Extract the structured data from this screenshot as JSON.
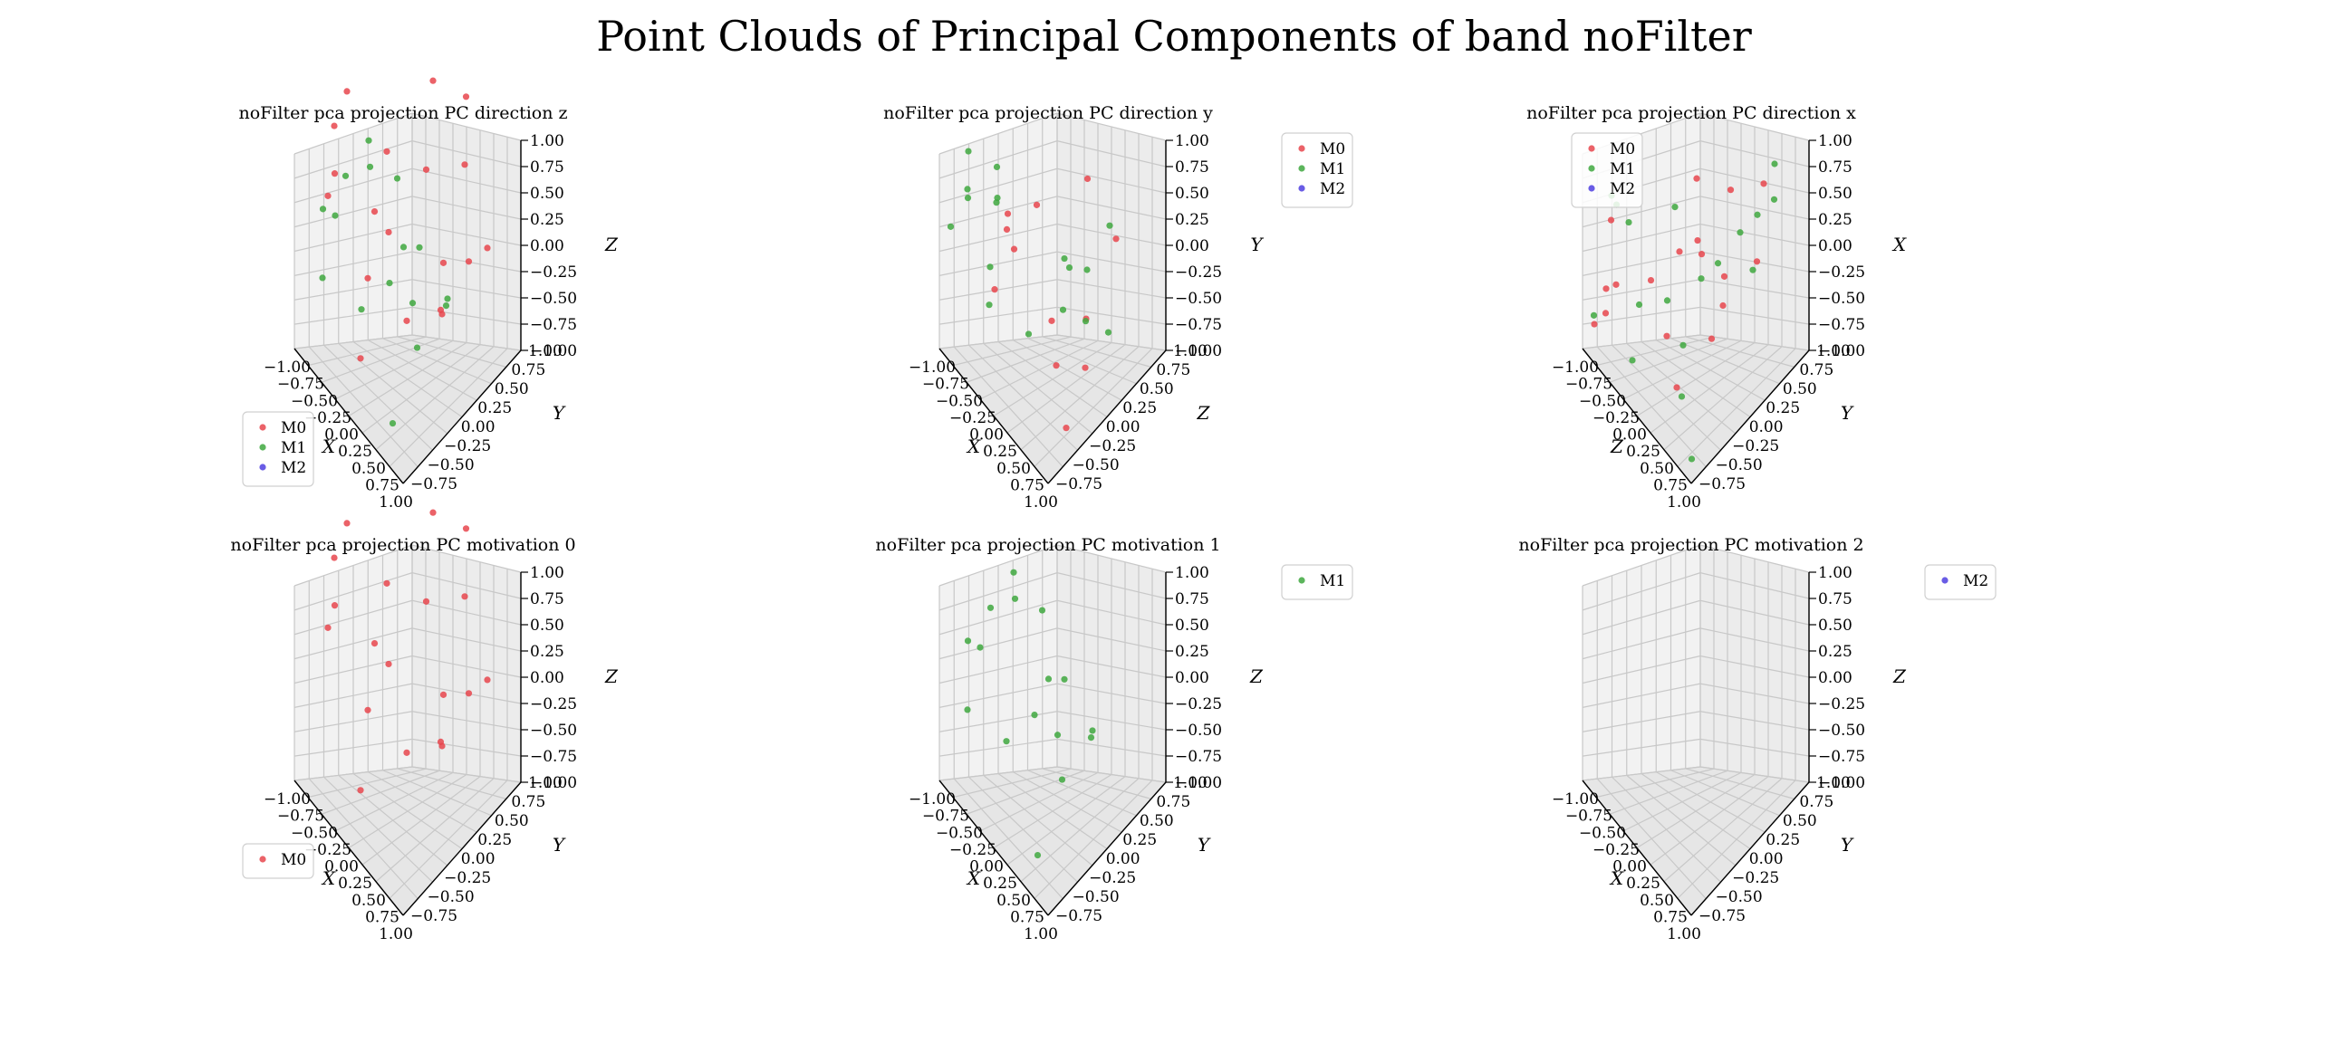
{
  "figure": {
    "suptitle": "Point Clouds of Principal Components of band noFilter"
  },
  "colors": {
    "M0": "#e8474d",
    "M1": "#3fa83f",
    "M2": "#4f3fe0"
  },
  "chart_data": [
    {
      "type": "scatter",
      "title": "noFilter pca projection PC direction z",
      "xlabel": "X",
      "ylabel": "Y",
      "zlabel": "Z",
      "xlim": [
        -1,
        1
      ],
      "ylim": [
        -1,
        1
      ],
      "zlim": [
        -1,
        1
      ],
      "x_ticks": [
        "−1.00",
        "−0.75",
        "−0.50",
        "−0.25",
        "0.00",
        "0.25",
        "0.50",
        "0.75",
        "1.00"
      ],
      "y_ticks": [
        "−0.75",
        "−0.50",
        "−0.25",
        "0.00",
        "0.25",
        "0.50",
        "0.75",
        "1.00"
      ],
      "z_ticks": [
        "−1.00",
        "−0.75",
        "−0.50",
        "−0.25",
        "0.00",
        "0.25",
        "0.50",
        "0.75",
        "1.00"
      ],
      "legend": {
        "entries": [
          "M0",
          "M1",
          "M2"
        ],
        "placement": "lower-left"
      },
      "series": [
        {
          "name": "M0",
          "points": [
            [
              -0.9,
              -0.2,
              0.9
            ],
            [
              -0.7,
              -0.6,
              0.95
            ],
            [
              -0.6,
              0.2,
              0.3
            ],
            [
              -0.8,
              -0.5,
              0.4
            ],
            [
              -0.5,
              -0.1,
              0.0
            ],
            [
              0.1,
              0.9,
              0.8
            ],
            [
              0.4,
              0.6,
              0.55
            ],
            [
              -0.2,
              0.5,
              0.2
            ],
            [
              0.0,
              -0.8,
              -0.6
            ],
            [
              -0.3,
              -0.4,
              -0.3
            ],
            [
              0.2,
              -0.2,
              -0.5
            ],
            [
              0.5,
              0.1,
              -0.4
            ],
            [
              -0.1,
              0.7,
              -0.7
            ],
            [
              0.6,
              0.8,
              -0.2
            ],
            [
              0.3,
              -0.6,
              0.6
            ],
            [
              -0.4,
              0.8,
              0.7
            ],
            [
              0.8,
              0.3,
              0.1
            ],
            [
              -0.6,
              -0.8,
              0.5
            ],
            [
              0.2,
              0.4,
              -0.8
            ]
          ]
        },
        {
          "name": "M1",
          "points": [
            [
              -0.8,
              -0.7,
              0.2
            ],
            [
              -0.9,
              -0.4,
              -0.1
            ],
            [
              -0.6,
              -0.5,
              0.5
            ],
            [
              -0.7,
              -0.8,
              -0.3
            ],
            [
              -0.3,
              0.1,
              0.3
            ],
            [
              0.0,
              0.2,
              -0.2
            ],
            [
              0.2,
              -0.1,
              -0.4
            ],
            [
              0.5,
              -0.3,
              -0.5
            ],
            [
              0.3,
              0.4,
              -0.6
            ],
            [
              -0.2,
              -0.6,
              -0.4
            ],
            [
              0.7,
              -0.9,
              -0.7
            ],
            [
              -0.5,
              -0.2,
              0.7
            ],
            [
              0.1,
              -0.4,
              -0.1
            ],
            [
              -0.4,
              0.3,
              -0.5
            ],
            [
              0.6,
              0.1,
              -0.3
            ],
            [
              -0.8,
              0.1,
              0.1
            ]
          ]
        },
        {
          "name": "M2",
          "points": []
        }
      ]
    },
    {
      "type": "scatter",
      "title": "noFilter pca projection PC direction y",
      "xlabel": "X",
      "ylabel": "Z",
      "zlabel": "Y",
      "xlim": [
        -1,
        1
      ],
      "ylim": [
        -1,
        1
      ],
      "zlim": [
        -1,
        1
      ],
      "x_ticks": [
        "−1.00",
        "−0.75",
        "−0.50",
        "−0.25",
        "0.00",
        "0.25",
        "0.50",
        "0.75",
        "1.00"
      ],
      "y_ticks": [
        "−0.75",
        "−0.50",
        "−0.25",
        "0.00",
        "0.25",
        "0.50",
        "0.75",
        "1.00"
      ],
      "z_ticks": [
        "−1.00",
        "−0.75",
        "−0.50",
        "−0.25",
        "0.00",
        "0.25",
        "0.50",
        "0.75",
        "1.00"
      ],
      "legend": {
        "entries": [
          "M0",
          "M1",
          "M2"
        ],
        "placement": "upper-right"
      },
      "series": [
        {
          "name": "M0",
          "points": [
            [
              -0.5,
              -0.3,
              0.1
            ],
            [
              -0.3,
              -0.5,
              0.2
            ],
            [
              -0.6,
              -0.1,
              -0.4
            ],
            [
              0.1,
              0.5,
              0.3
            ],
            [
              0.2,
              -0.2,
              -0.5
            ],
            [
              0.5,
              -0.4,
              -0.6
            ],
            [
              0.4,
              0.2,
              -0.6
            ],
            [
              -0.4,
              0.1,
              0.0
            ],
            [
              0.6,
              0.0,
              -0.8
            ],
            [
              0.9,
              -0.6,
              -0.8
            ],
            [
              0.3,
              0.8,
              -0.3
            ],
            [
              -0.2,
              -0.8,
              -0.1
            ]
          ]
        },
        {
          "name": "M1",
          "points": [
            [
              -0.9,
              -0.6,
              0.6
            ],
            [
              -0.8,
              -0.7,
              0.3
            ],
            [
              -0.7,
              -0.3,
              0.4
            ],
            [
              -0.9,
              -0.9,
              0.1
            ],
            [
              -0.6,
              -0.4,
              0.2
            ],
            [
              -0.8,
              -0.2,
              0.0
            ],
            [
              -0.5,
              -0.6,
              -0.2
            ],
            [
              0.0,
              0.2,
              -0.3
            ],
            [
              0.2,
              0.1,
              -0.2
            ],
            [
              0.3,
              -0.1,
              -0.4
            ],
            [
              0.1,
              -0.5,
              -0.5
            ],
            [
              0.5,
              0.1,
              -0.5
            ],
            [
              0.4,
              0.6,
              0.0
            ],
            [
              0.7,
              0.3,
              -0.6
            ],
            [
              -0.3,
              -0.8,
              -0.3
            ],
            [
              0.2,
              0.4,
              -0.4
            ],
            [
              -0.7,
              -0.8,
              0.5
            ]
          ]
        },
        {
          "name": "M2",
          "points": []
        }
      ]
    },
    {
      "type": "scatter",
      "title": "noFilter pca projection PC direction x",
      "xlabel": "Z",
      "ylabel": "Y",
      "zlabel": "X",
      "xlim": [
        -1,
        1
      ],
      "ylim": [
        -1,
        1
      ],
      "zlim": [
        -1,
        1
      ],
      "x_ticks": [
        "−1.00",
        "−0.75",
        "−0.50",
        "−0.25",
        "0.00",
        "0.25",
        "0.50",
        "0.75",
        "1.00"
      ],
      "y_ticks": [
        "−0.75",
        "−0.50",
        "−0.25",
        "0.00",
        "0.25",
        "0.50",
        "0.75",
        "1.00"
      ],
      "z_ticks": [
        "−1.00",
        "−0.75",
        "−0.50",
        "−0.25",
        "0.00",
        "0.25",
        "0.50",
        "0.75",
        "1.00"
      ],
      "legend": {
        "entries": [
          "M0",
          "M1",
          "M2"
        ],
        "placement": "upper-left"
      },
      "series": [
        {
          "name": "M0",
          "points": [
            [
              -0.2,
              0.2,
              0.3
            ],
            [
              0.6,
              0.6,
              0.5
            ],
            [
              0.8,
              0.3,
              0.1
            ],
            [
              -0.5,
              -0.3,
              -0.5
            ],
            [
              -0.3,
              0.0,
              -0.3
            ],
            [
              0.0,
              0.1,
              -0.2
            ],
            [
              0.2,
              0.3,
              -0.4
            ],
            [
              0.4,
              -0.1,
              -0.6
            ],
            [
              -0.1,
              -0.4,
              -0.7
            ],
            [
              0.3,
              -0.6,
              -0.8
            ],
            [
              -0.6,
              -0.8,
              -0.3
            ],
            [
              0.1,
              0.5,
              0.2
            ],
            [
              -0.8,
              -0.7,
              0.1
            ],
            [
              0.5,
              0.0,
              -0.3
            ],
            [
              -0.4,
              0.4,
              -0.5
            ],
            [
              -1.0,
              -0.8,
              -0.9
            ],
            [
              -0.9,
              -0.7,
              -0.8
            ],
            [
              -1.0,
              -0.6,
              -0.7
            ]
          ]
        },
        {
          "name": "M1",
          "points": [
            [
              -0.9,
              -0.6,
              0.2
            ],
            [
              -0.8,
              -0.4,
              -0.1
            ],
            [
              -0.7,
              -0.7,
              0.3
            ],
            [
              0.8,
              0.6,
              0.8
            ],
            [
              0.9,
              0.5,
              0.6
            ],
            [
              0.7,
              0.4,
              0.4
            ],
            [
              0.6,
              0.2,
              0.3
            ],
            [
              0.3,
              0.1,
              -0.1
            ],
            [
              0.1,
              0.0,
              -0.3
            ],
            [
              -0.2,
              -0.3,
              -0.5
            ],
            [
              -0.5,
              -0.5,
              -0.6
            ],
            [
              -0.3,
              -0.8,
              -0.8
            ],
            [
              0.2,
              -0.4,
              -0.6
            ],
            [
              0.5,
              -0.7,
              -0.7
            ],
            [
              0.9,
              -0.9,
              -0.9
            ],
            [
              -0.6,
              0.2,
              -0.2
            ],
            [
              0.4,
              0.6,
              -0.4
            ],
            [
              -0.9,
              -0.9,
              -0.7
            ]
          ]
        },
        {
          "name": "M2",
          "points": []
        }
      ]
    },
    {
      "type": "scatter",
      "title": "noFilter pca projection PC motivation 0",
      "xlabel": "X",
      "ylabel": "Y",
      "zlabel": "Z",
      "xlim": [
        -1,
        1
      ],
      "ylim": [
        -1,
        1
      ],
      "zlim": [
        -1,
        1
      ],
      "x_ticks": [
        "−1.00",
        "−0.75",
        "−0.50",
        "−0.25",
        "0.00",
        "0.25",
        "0.50",
        "0.75",
        "1.00"
      ],
      "y_ticks": [
        "−0.75",
        "−0.50",
        "−0.25",
        "0.00",
        "0.25",
        "0.50",
        "0.75",
        "1.00"
      ],
      "z_ticks": [
        "−1.00",
        "−0.75",
        "−0.50",
        "−0.25",
        "0.00",
        "0.25",
        "0.50",
        "0.75",
        "1.00"
      ],
      "legend": {
        "entries": [
          "M0"
        ],
        "placement": "lower-left"
      },
      "series": [
        {
          "name": "M0",
          "points": [
            [
              -0.9,
              -0.2,
              0.9
            ],
            [
              -0.7,
              -0.6,
              0.95
            ],
            [
              -0.6,
              0.2,
              0.3
            ],
            [
              -0.8,
              -0.5,
              0.4
            ],
            [
              -0.5,
              -0.1,
              0.0
            ],
            [
              0.1,
              0.9,
              0.8
            ],
            [
              0.4,
              0.6,
              0.55
            ],
            [
              -0.2,
              0.5,
              0.2
            ],
            [
              0.0,
              -0.8,
              -0.6
            ],
            [
              -0.3,
              -0.4,
              -0.3
            ],
            [
              0.2,
              -0.2,
              -0.5
            ],
            [
              0.5,
              0.1,
              -0.4
            ],
            [
              -0.1,
              0.7,
              -0.7
            ],
            [
              0.6,
              0.8,
              -0.2
            ],
            [
              0.3,
              -0.6,
              0.6
            ],
            [
              -0.4,
              0.8,
              0.7
            ],
            [
              0.8,
              0.3,
              0.1
            ],
            [
              -0.6,
              -0.8,
              0.5
            ],
            [
              0.2,
              0.4,
              -0.8
            ]
          ]
        }
      ]
    },
    {
      "type": "scatter",
      "title": "noFilter pca projection PC motivation 1",
      "xlabel": "X",
      "ylabel": "Y",
      "zlabel": "Z",
      "xlim": [
        -1,
        1
      ],
      "ylim": [
        -1,
        1
      ],
      "zlim": [
        -1,
        1
      ],
      "x_ticks": [
        "−1.00",
        "−0.75",
        "−0.50",
        "−0.25",
        "0.00",
        "0.25",
        "0.50",
        "0.75",
        "1.00"
      ],
      "y_ticks": [
        "−0.75",
        "−0.50",
        "−0.25",
        "0.00",
        "0.25",
        "0.50",
        "0.75",
        "1.00"
      ],
      "z_ticks": [
        "−1.00",
        "−0.75",
        "−0.50",
        "−0.25",
        "0.00",
        "0.25",
        "0.50",
        "0.75",
        "1.00"
      ],
      "legend": {
        "entries": [
          "M1"
        ],
        "placement": "upper-right"
      },
      "series": [
        {
          "name": "M1",
          "points": [
            [
              -0.8,
              -0.7,
              0.2
            ],
            [
              -0.9,
              -0.4,
              -0.1
            ],
            [
              -0.6,
              -0.5,
              0.5
            ],
            [
              -0.7,
              -0.8,
              -0.3
            ],
            [
              -0.3,
              0.1,
              0.3
            ],
            [
              0.0,
              0.2,
              -0.2
            ],
            [
              0.2,
              -0.1,
              -0.4
            ],
            [
              0.5,
              -0.3,
              -0.5
            ],
            [
              0.3,
              0.4,
              -0.6
            ],
            [
              -0.2,
              -0.6,
              -0.4
            ],
            [
              0.7,
              -0.9,
              -0.7
            ],
            [
              -0.5,
              -0.2,
              0.7
            ],
            [
              0.1,
              -0.4,
              -0.1
            ],
            [
              -0.4,
              0.3,
              -0.5
            ],
            [
              0.6,
              0.1,
              -0.3
            ],
            [
              -0.8,
              0.1,
              0.1
            ]
          ]
        }
      ]
    },
    {
      "type": "scatter",
      "title": "noFilter pca projection PC motivation 2",
      "xlabel": "X",
      "ylabel": "Y",
      "zlabel": "Z",
      "xlim": [
        -1,
        1
      ],
      "ylim": [
        -1,
        1
      ],
      "zlim": [
        -1,
        1
      ],
      "x_ticks": [
        "−1.00",
        "−0.75",
        "−0.50",
        "−0.25",
        "0.00",
        "0.25",
        "0.50",
        "0.75",
        "1.00"
      ],
      "y_ticks": [
        "−0.75",
        "−0.50",
        "−0.25",
        "0.00",
        "0.25",
        "0.50",
        "0.75",
        "1.00"
      ],
      "z_ticks": [
        "−1.00",
        "−0.75",
        "−0.50",
        "−0.25",
        "0.00",
        "0.25",
        "0.50",
        "0.75",
        "1.00"
      ],
      "legend": {
        "entries": [
          "M2"
        ],
        "placement": "upper-right"
      },
      "series": [
        {
          "name": "M2",
          "points": []
        }
      ]
    }
  ]
}
